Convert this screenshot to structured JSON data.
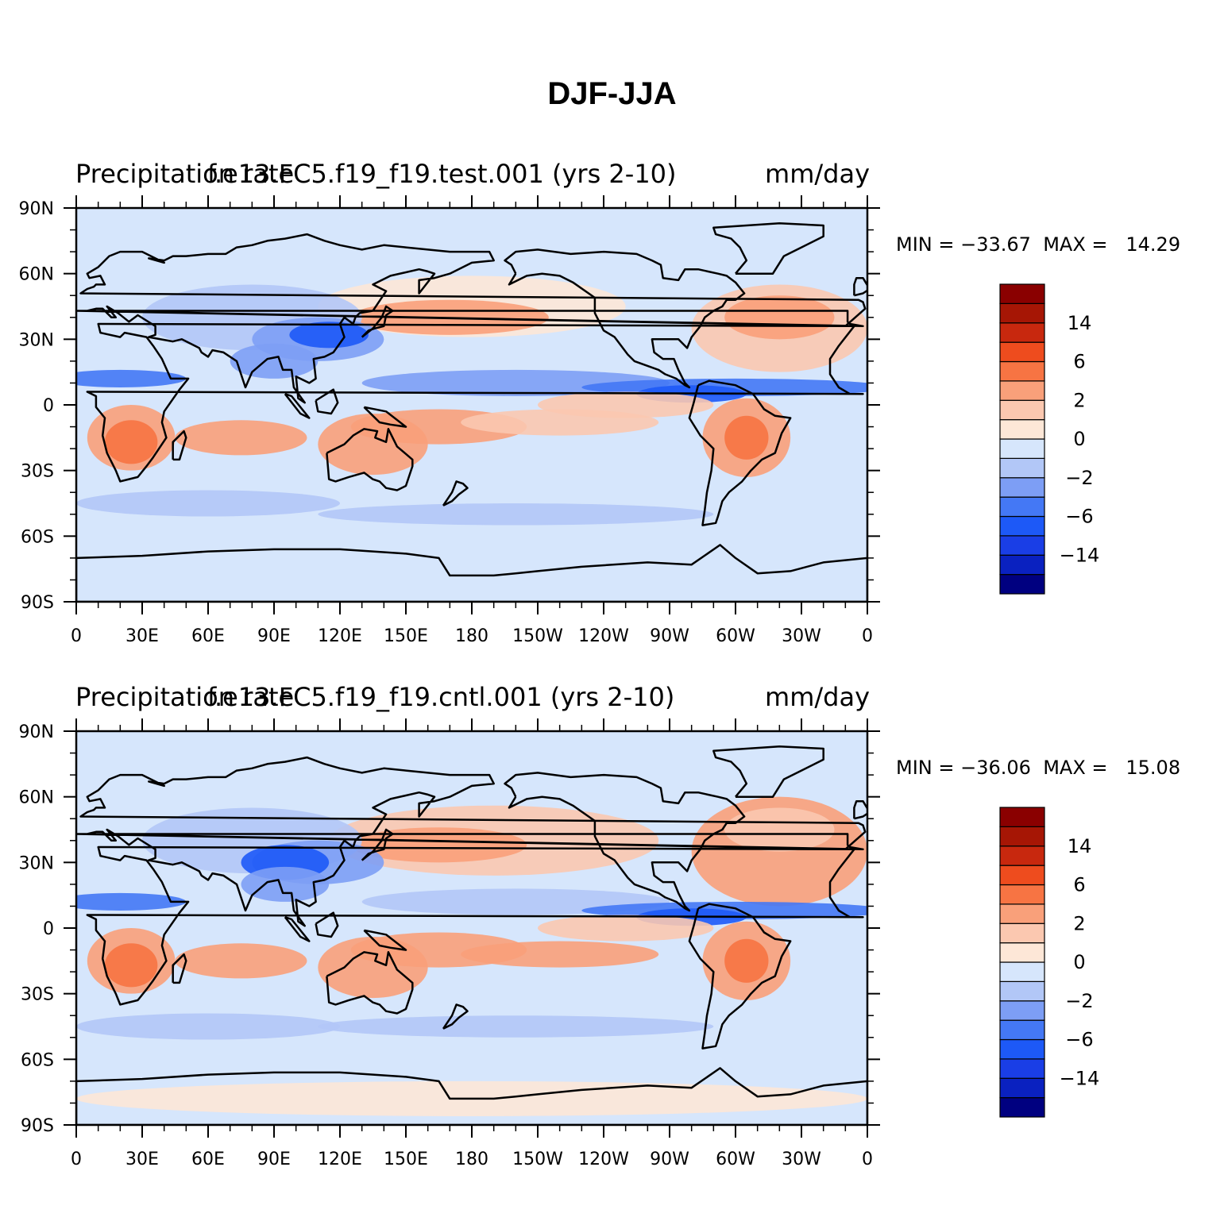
{
  "figure": {
    "title": "DJF-JJA"
  },
  "chart_data": [
    {
      "type": "heatmap",
      "title_left": "Precipitation rate",
      "title_center": "f.e13.FC5.f19_f19.test.001 (yrs 2-10)",
      "title_right": "mm/day",
      "min_label": "MIN = −33.67",
      "max_label": "MAX =   14.29",
      "min": -33.67,
      "max": 14.29,
      "x_ticks": [
        "0",
        "30E",
        "60E",
        "90E",
        "120E",
        "150E",
        "180",
        "150W",
        "120W",
        "90W",
        "60W",
        "30W",
        "0"
      ],
      "y_ticks": [
        "90N",
        "60N",
        "30N",
        "0",
        "30S",
        "60S",
        "90S"
      ],
      "colorbar": {
        "colors": [
          "#000080",
          "#0a21c0",
          "#1a3ee6",
          "#1d59f7",
          "#4478f5",
          "#7d9ef5",
          "#b2c7f7",
          "#d6e6fc",
          "#fde7d7",
          "#fbc8b0",
          "#f9a07a",
          "#f77443",
          "#ee4c1e",
          "#c8280e",
          "#a61605",
          "#8a0000"
        ],
        "labels": [
          "14",
          "6",
          "2",
          "0",
          "−2",
          "−6",
          "−14"
        ]
      }
    },
    {
      "type": "heatmap",
      "title_left": "Precipitation rate",
      "title_center": "f.e13.FC5.f19_f19.cntl.001 (yrs 2-10)",
      "title_right": "mm/day",
      "min_label": "MIN = −36.06",
      "max_label": "MAX =   15.08",
      "min": -36.06,
      "max": 15.08,
      "x_ticks": [
        "0",
        "30E",
        "60E",
        "90E",
        "120E",
        "150E",
        "180",
        "150W",
        "120W",
        "90W",
        "60W",
        "30W",
        "0"
      ],
      "y_ticks": [
        "90N",
        "60N",
        "30N",
        "0",
        "30S",
        "60S",
        "90S"
      ],
      "colorbar": {
        "colors": [
          "#000080",
          "#0a21c0",
          "#1a3ee6",
          "#1d59f7",
          "#4478f5",
          "#7d9ef5",
          "#b2c7f7",
          "#d6e6fc",
          "#fde7d7",
          "#fbc8b0",
          "#f9a07a",
          "#f77443",
          "#ee4c1e",
          "#c8280e",
          "#a61605",
          "#8a0000"
        ],
        "labels": [
          "14",
          "6",
          "2",
          "0",
          "−2",
          "−6",
          "−14"
        ]
      }
    }
  ]
}
